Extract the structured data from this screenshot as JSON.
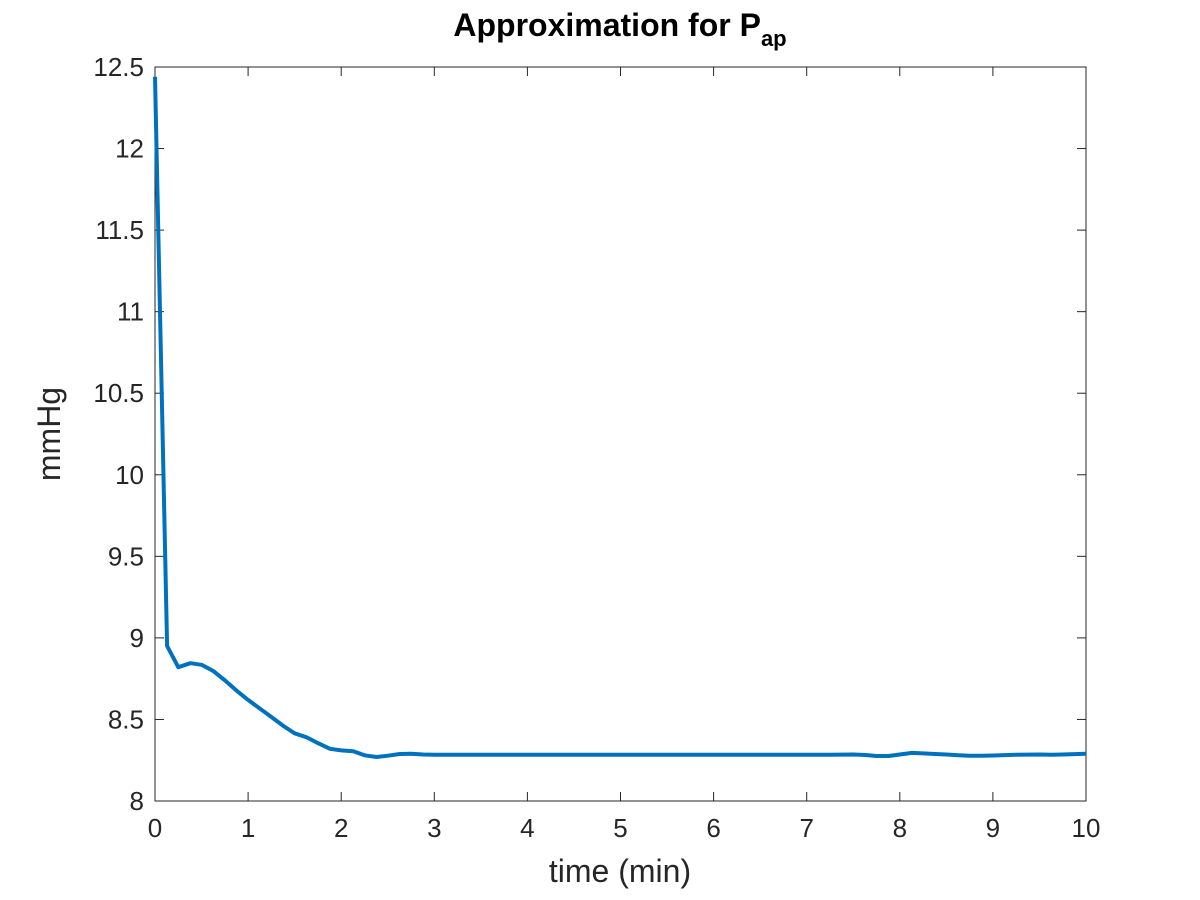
{
  "chart_data": {
    "type": "line",
    "title": "Approximation for P",
    "title_subscript": "ap",
    "xlabel": "time (min)",
    "ylabel": "mmHg",
    "xlim": [
      0,
      10
    ],
    "ylim": [
      8,
      12.5
    ],
    "xticks": [
      0,
      1,
      2,
      3,
      4,
      5,
      6,
      7,
      8,
      9,
      10
    ],
    "yticks": [
      8,
      8.5,
      9,
      9.5,
      10,
      10.5,
      11,
      11.5,
      12,
      12.5
    ],
    "xtick_labels": [
      "0",
      "1",
      "2",
      "3",
      "4",
      "5",
      "6",
      "7",
      "8",
      "9",
      "10"
    ],
    "ytick_labels": [
      "8",
      "8.5",
      "9",
      "9.5",
      "10",
      "10.5",
      "11",
      "11.5",
      "12",
      "12.5"
    ],
    "grid": false,
    "box": true,
    "series": [
      {
        "color": "#0072BD",
        "x": [
          0,
          0.13,
          0.25,
          0.38,
          0.5,
          0.63,
          0.75,
          0.88,
          1.0,
          1.13,
          1.25,
          1.38,
          1.5,
          1.63,
          1.75,
          1.88,
          2.0,
          2.13,
          2.25,
          2.38,
          2.5,
          2.63,
          2.75,
          2.88,
          3.0,
          3.5,
          4.0,
          4.5,
          5.0,
          5.5,
          6.0,
          6.5,
          7.0,
          7.25,
          7.5,
          7.63,
          7.75,
          7.88,
          8.0,
          8.13,
          8.25,
          8.38,
          8.5,
          8.63,
          8.75,
          8.88,
          9.0,
          9.25,
          9.5,
          9.63,
          9.75,
          10.0
        ],
        "y": [
          12.44,
          8.95,
          8.82,
          8.845,
          8.835,
          8.795,
          8.74,
          8.675,
          8.62,
          8.565,
          8.515,
          8.46,
          8.415,
          8.39,
          8.355,
          8.32,
          8.31,
          8.305,
          8.28,
          8.27,
          8.278,
          8.288,
          8.29,
          8.285,
          8.283,
          8.283,
          8.283,
          8.283,
          8.283,
          8.283,
          8.283,
          8.283,
          8.283,
          8.283,
          8.285,
          8.282,
          8.276,
          8.276,
          8.285,
          8.295,
          8.292,
          8.288,
          8.285,
          8.281,
          8.278,
          8.278,
          8.279,
          8.283,
          8.285,
          8.283,
          8.285,
          8.29
        ]
      }
    ]
  }
}
